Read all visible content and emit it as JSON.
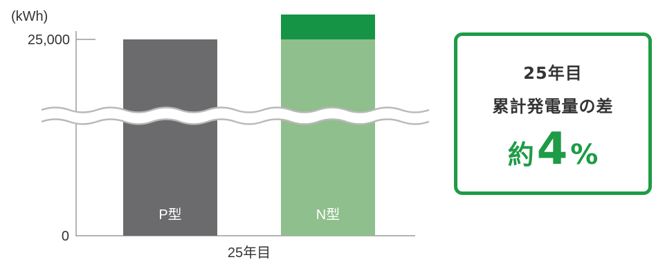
{
  "chart_data": {
    "type": "bar",
    "unit_label": "(kWh)",
    "y_ticks": [
      {
        "label": "25,000",
        "value": 25000
      },
      {
        "label": "0",
        "value": 0
      }
    ],
    "categories": [
      "P型",
      "N型"
    ],
    "xlabel": "25年目",
    "axis_break": true,
    "series": [
      {
        "values": [
          25000,
          25000
        ]
      },
      {
        "values": [
          0,
          1000
        ]
      }
    ],
    "colors": {
      "p_bar": "#6b6b6e",
      "n_bar_base": "#8fbf8c",
      "n_bar_extra": "#159445",
      "axis": "#9a9a9a",
      "text": "#333333"
    }
  },
  "callout": {
    "line1": "25年目",
    "line2": "累計発電量の差",
    "prefix": "約",
    "number": "4",
    "unit": "%",
    "accent_color": "#1e9b46"
  }
}
